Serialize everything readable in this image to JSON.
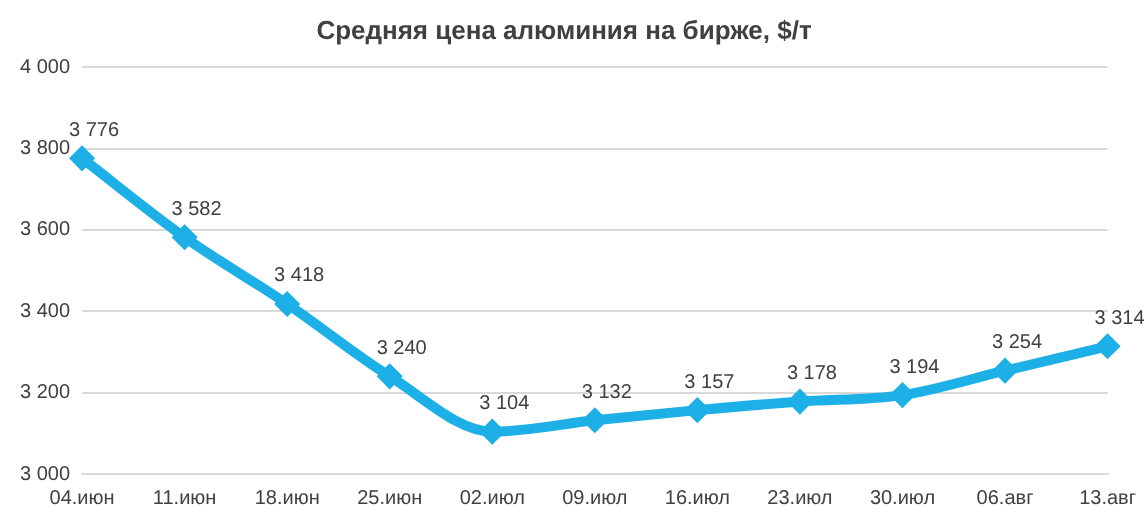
{
  "chart_data": {
    "type": "line",
    "title": "Средняя цена алюминия на бирже, $/т",
    "categories": [
      "04.июн",
      "11.июн",
      "18.июн",
      "25.июн",
      "02.июл",
      "09.июл",
      "16.июл",
      "23.июл",
      "30.июл",
      "06.авг",
      "13.авг"
    ],
    "series": [
      {
        "color": "#1cb0e6",
        "values": [
          3776,
          3582,
          3418,
          3240,
          3104,
          3132,
          3157,
          3178,
          3194,
          3254,
          3314
        ],
        "value_labels": [
          "3 776",
          "3 582",
          "3 418",
          "3 240",
          "3 104",
          "3 132",
          "3 157",
          "3 178",
          "3 194",
          "3 254",
          "3 314"
        ]
      }
    ],
    "ylim": [
      3000,
      4000
    ],
    "yticks": [
      {
        "value": 3000,
        "label": "3 000"
      },
      {
        "value": 3200,
        "label": "3 200"
      },
      {
        "value": 3400,
        "label": "3 400"
      },
      {
        "value": 3600,
        "label": "3 600"
      },
      {
        "value": 3800,
        "label": "3 800"
      },
      {
        "value": 4000,
        "label": "4 000"
      }
    ],
    "grid": "y",
    "legend": false,
    "marker": "diamond",
    "line_style": "solid"
  }
}
